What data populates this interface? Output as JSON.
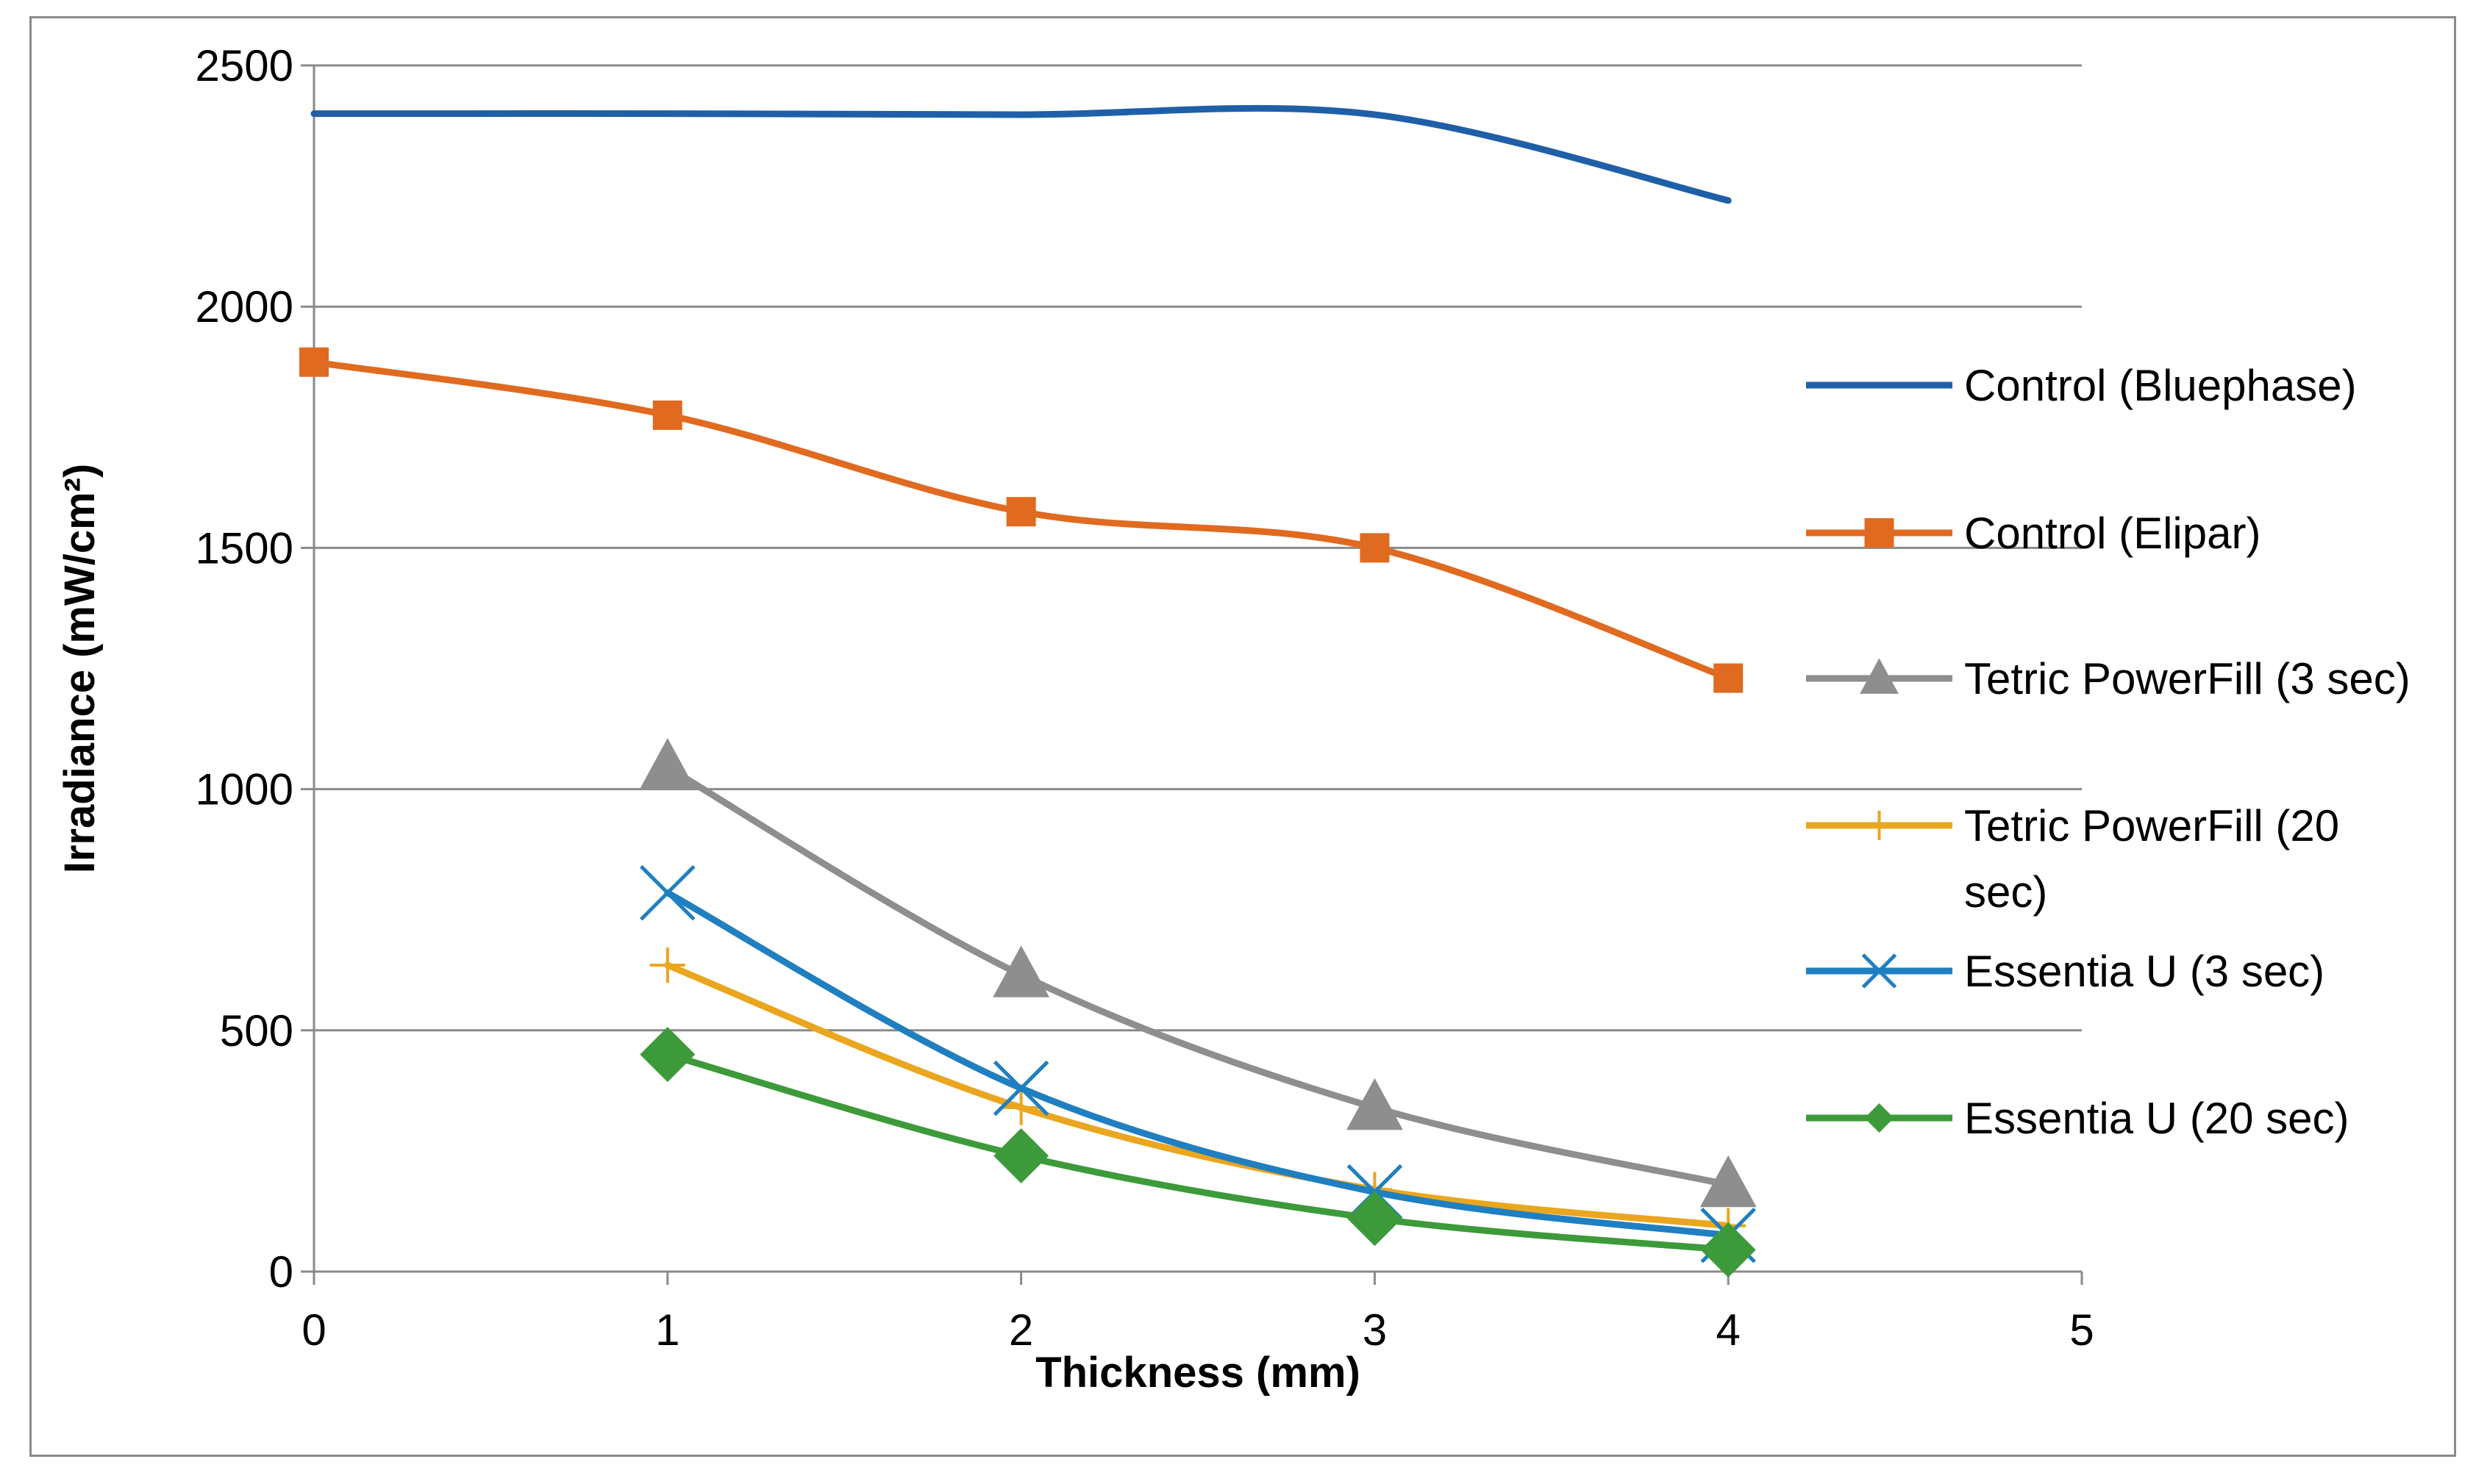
{
  "chart_data": {
    "type": "line",
    "title": "",
    "xlabel": "Thickness (mm)",
    "ylabel": "Irradiance (mW/cm²)",
    "xlim": [
      0,
      5
    ],
    "ylim": [
      0,
      2500
    ],
    "xticks": [
      0,
      1,
      2,
      3,
      4,
      5
    ],
    "yticks": [
      0,
      500,
      1000,
      1500,
      2000,
      2500
    ],
    "grid": "horizontal",
    "legend_position": "right",
    "series": [
      {
        "name": "Control (Bluephase)",
        "color": "#1f5fa8",
        "marker": "none",
        "x": [
          0,
          1,
          2,
          3,
          4
        ],
        "y": [
          2400,
          2400,
          2398,
          2398,
          2220
        ]
      },
      {
        "name": "Control (Elipar)",
        "color": "#e06a20",
        "marker": "square",
        "x": [
          0,
          1,
          2,
          3,
          4
        ],
        "y": [
          1885,
          1775,
          1575,
          1500,
          1230
        ]
      },
      {
        "name": "Tetric PowerFill (3 sec)",
        "color": "#8e8e8e",
        "marker": "triangle",
        "x": [
          1,
          2,
          3,
          4
        ],
        "y": [
          1045,
          615,
          340,
          180
        ]
      },
      {
        "name": "Tetric PowerFill (20 sec)",
        "color": "#eaa61e",
        "marker": "plus",
        "x": [
          1,
          2,
          3,
          4
        ],
        "y": [
          635,
          340,
          170,
          95
        ]
      },
      {
        "name": "Essentia U (3 sec)",
        "color": "#1f7fc0",
        "marker": "x",
        "x": [
          1,
          2,
          3,
          4
        ],
        "y": [
          785,
          380,
          165,
          75
        ]
      },
      {
        "name": "Essentia U (20 sec)",
        "color": "#3d9a3a",
        "marker": "diamond",
        "x": [
          1,
          2,
          3,
          4
        ],
        "y": [
          450,
          240,
          110,
          45
        ]
      }
    ]
  }
}
